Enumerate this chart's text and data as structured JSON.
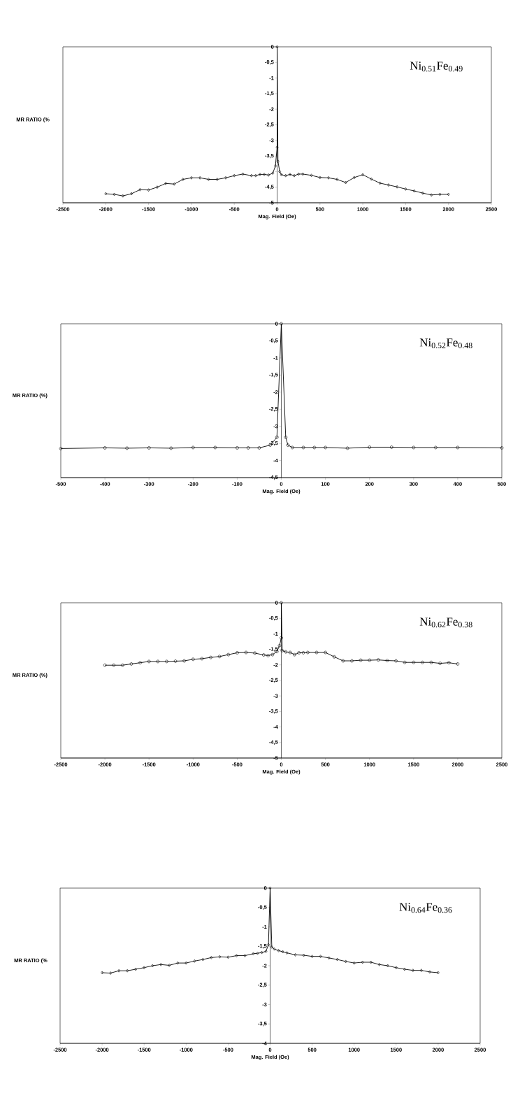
{
  "chart_data": [
    {
      "type": "line",
      "xlabel": "Mag. Field (Oe)",
      "ylabel": "MR RATIO (%",
      "annotations": [
        "Ni$_{0.51}$Fe$_{0.49}$"
      ],
      "marker": "diamond",
      "line_style": "solid",
      "xlim": [
        -2500,
        2500
      ],
      "xticks": [
        -2500,
        -2000,
        -1500,
        -1000,
        -500,
        0,
        500,
        1000,
        1500,
        2000,
        2500
      ],
      "ylim": [
        -5,
        0
      ],
      "yticks": [
        {
          "value": -5,
          "label": "-5"
        },
        {
          "value": -4.5,
          "label": "-4,5"
        },
        {
          "value": -4,
          "label": null
        },
        {
          "value": -3.5,
          "label": "-3,5"
        },
        -3,
        {
          "value": -2.5,
          "label": "-2,5"
        },
        -2,
        {
          "value": -1.5,
          "label": "-1,5"
        },
        -1,
        {
          "value": -0.5,
          "label": "-0,5"
        },
        0
      ],
      "series": [
        {
          "color": "#000000",
          "x": [
            -2000,
            -1900,
            -1800,
            -1700,
            -1600,
            -1500,
            -1400,
            -1300,
            -1200,
            -1100,
            -1000,
            -900,
            -800,
            -700,
            -600,
            -500,
            -400,
            -300,
            -250,
            -200,
            -150,
            -100,
            -50,
            -20,
            0,
            0,
            10,
            30,
            50,
            100,
            150,
            200,
            250,
            300,
            400,
            500,
            600,
            700,
            800,
            900,
            1000,
            1100,
            1200,
            1300,
            1400,
            1500,
            1600,
            1700,
            1800,
            1900,
            2000
          ],
          "values": [
            -4.71,
            -4.73,
            -4.78,
            -4.71,
            -4.58,
            -4.59,
            -4.5,
            -4.38,
            -4.4,
            -4.25,
            -4.2,
            -4.2,
            -4.25,
            -4.25,
            -4.2,
            -4.13,
            -4.08,
            -4.13,
            -4.13,
            -4.09,
            -4.09,
            -4.11,
            -4.05,
            -3.82,
            -3.22,
            0,
            -3.67,
            -4.0,
            -4.1,
            -4.13,
            -4.09,
            -4.13,
            -4.08,
            -4.08,
            -4.12,
            -4.19,
            -4.2,
            -4.25,
            -4.35,
            -4.19,
            -4.1,
            -4.24,
            -4.37,
            -4.43,
            -4.49,
            -4.56,
            -4.62,
            -4.69,
            -4.75,
            -4.73,
            -4.73
          ]
        }
      ]
    },
    {
      "type": "line",
      "xlabel": "Mag. Field (Oe)",
      "ylabel": "MR RATIO (%)",
      "annotations": [
        "Ni$_{0.52}$Fe$_{0.48}$"
      ],
      "marker": "circle",
      "line_style": "solid",
      "xlim": [
        -500,
        500
      ],
      "xticks": [
        -500,
        -400,
        -300,
        -200,
        -100,
        0,
        100,
        200,
        300,
        400,
        500
      ],
      "ylim": [
        -4.5,
        0
      ],
      "yticks": [
        {
          "value": -4.5,
          "label": "-4,5"
        },
        -4,
        {
          "value": -3.5,
          "label": "-3,5"
        },
        -3,
        {
          "value": -2.5,
          "label": "-2,5"
        },
        -2,
        {
          "value": -1.5,
          "label": "-1,5"
        },
        -1,
        {
          "value": -0.5,
          "label": "-0,5"
        },
        0
      ],
      "series": [
        {
          "color": "#000000",
          "x": [
            -500,
            -400,
            -350,
            -300,
            -250,
            -200,
            -150,
            -100,
            -75,
            -50,
            -25,
            -10,
            0,
            10,
            15,
            25,
            50,
            75,
            100,
            150,
            200,
            250,
            300,
            350,
            400,
            500
          ],
          "values": [
            -3.65,
            -3.63,
            -3.64,
            -3.63,
            -3.64,
            -3.62,
            -3.62,
            -3.63,
            -3.63,
            -3.63,
            -3.55,
            -3.32,
            0,
            -3.32,
            -3.55,
            -3.62,
            -3.62,
            -3.62,
            -3.62,
            -3.64,
            -3.61,
            -3.61,
            -3.62,
            -3.62,
            -3.62,
            -3.63
          ]
        }
      ]
    },
    {
      "type": "line",
      "xlabel": "Mag. Field (Oe)",
      "ylabel": "MR RATIO (%)",
      "annotations": [
        "Ni$_{0.62}$Fe$_{0.38}$"
      ],
      "marker": "circle",
      "line_style": "solid",
      "xlim": [
        -2500,
        2500
      ],
      "xticks": [
        -2500,
        -2000,
        -1500,
        -1000,
        -500,
        0,
        500,
        1000,
        1500,
        2000,
        2500
      ],
      "ylim": [
        -5,
        0
      ],
      "yticks": [
        -5,
        {
          "value": -4.5,
          "label": "-4,5"
        },
        -4,
        {
          "value": -3.5,
          "label": "-3,5"
        },
        -3,
        {
          "value": -2.5,
          "label": "-2,5"
        },
        -2,
        {
          "value": -1.5,
          "label": "-1,5"
        },
        -1,
        {
          "value": -0.5,
          "label": "-0,5"
        },
        0
      ],
      "series": [
        {
          "color": "#000000",
          "x": [
            -2000,
            -1900,
            -1800,
            -1700,
            -1600,
            -1500,
            -1400,
            -1300,
            -1200,
            -1100,
            -1000,
            -900,
            -800,
            -700,
            -600,
            -500,
            -400,
            -300,
            -200,
            -150,
            -100,
            -50,
            -20,
            0,
            0,
            10,
            50,
            100,
            150,
            200,
            250,
            300,
            400,
            500,
            600,
            700,
            800,
            900,
            1000,
            1100,
            1200,
            1300,
            1400,
            1500,
            1600,
            1700,
            1800,
            1900,
            2000
          ],
          "values": [
            -2.01,
            -2.01,
            -2.01,
            -1.97,
            -1.93,
            -1.89,
            -1.89,
            -1.89,
            -1.88,
            -1.87,
            -1.82,
            -1.8,
            -1.76,
            -1.73,
            -1.67,
            -1.61,
            -1.6,
            -1.62,
            -1.68,
            -1.7,
            -1.67,
            -1.57,
            -1.38,
            -1.13,
            0,
            -1.54,
            -1.58,
            -1.6,
            -1.67,
            -1.61,
            -1.61,
            -1.6,
            -1.6,
            -1.6,
            -1.74,
            -1.87,
            -1.87,
            -1.85,
            -1.85,
            -1.84,
            -1.86,
            -1.87,
            -1.92,
            -1.92,
            -1.92,
            -1.92,
            -1.95,
            -1.93,
            -1.97
          ]
        }
      ]
    },
    {
      "type": "line",
      "xlabel": "Mag. Field (Oe)",
      "ylabel": "MR RATIO (%",
      "annotations": [
        "Ni$_{0.64}$Fe$_{0.36}$"
      ],
      "marker": "diamond",
      "line_style": "solid",
      "xlim": [
        -2500,
        2500
      ],
      "xticks": [
        -2500,
        -2000,
        -1500,
        -1000,
        -500,
        0,
        500,
        1000,
        1500,
        2000,
        2500
      ],
      "ylim": [
        -4,
        0
      ],
      "yticks": [
        -4,
        {
          "value": -3.5,
          "label": "-3,5"
        },
        -3,
        {
          "value": -2.5,
          "label": "-2,5"
        },
        -2,
        {
          "value": -1.5,
          "label": "-1,5"
        },
        -1,
        {
          "value": -0.5,
          "label": "-0,5"
        },
        0
      ],
      "series": [
        {
          "color": "#000000",
          "x": [
            -2000,
            -1900,
            -1800,
            -1700,
            -1600,
            -1500,
            -1400,
            -1300,
            -1200,
            -1100,
            -1000,
            -900,
            -800,
            -700,
            -600,
            -500,
            -400,
            -300,
            -200,
            -150,
            -100,
            -50,
            -20,
            0,
            20,
            50,
            100,
            150,
            200,
            300,
            400,
            500,
            600,
            700,
            800,
            900,
            1000,
            1100,
            1200,
            1300,
            1400,
            1500,
            1600,
            1700,
            1800,
            1900,
            2000
          ],
          "values": [
            -2.18,
            -2.19,
            -2.13,
            -2.13,
            -2.09,
            -2.05,
            -2.0,
            -1.97,
            -1.99,
            -1.93,
            -1.93,
            -1.88,
            -1.84,
            -1.79,
            -1.77,
            -1.78,
            -1.74,
            -1.74,
            -1.69,
            -1.68,
            -1.66,
            -1.63,
            -1.46,
            0,
            -1.52,
            -1.57,
            -1.61,
            -1.64,
            -1.67,
            -1.72,
            -1.73,
            -1.76,
            -1.76,
            -1.8,
            -1.84,
            -1.89,
            -1.93,
            -1.91,
            -1.91,
            -1.97,
            -2.0,
            -2.05,
            -2.09,
            -2.12,
            -2.12,
            -2.16,
            -2.18
          ]
        }
      ]
    }
  ]
}
